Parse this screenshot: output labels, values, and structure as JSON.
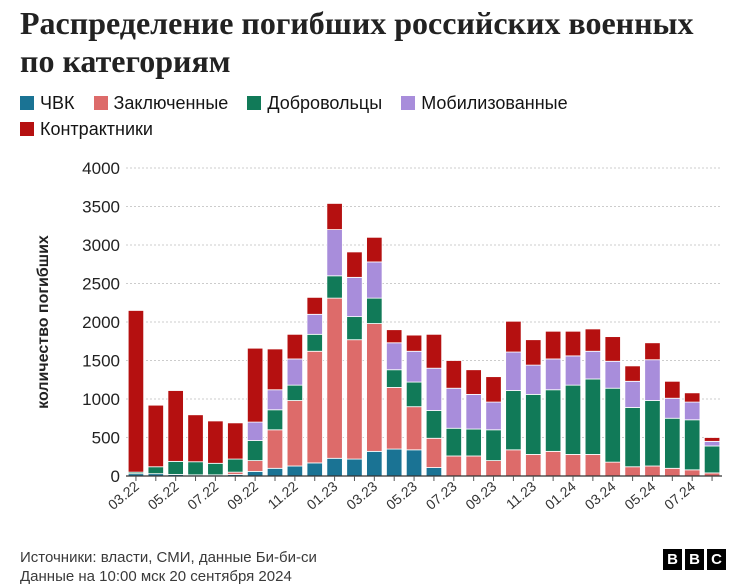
{
  "title": "Распределение погибших российских военных по категориям",
  "legend": [
    {
      "label": "ЧВК",
      "color": "#1a7394"
    },
    {
      "label": "Заключенные",
      "color": "#dd6b6a"
    },
    {
      "label": "Добровольцы",
      "color": "#117a58"
    },
    {
      "label": "Мобилизованные",
      "color": "#a88ddb"
    },
    {
      "label": "Контрактники",
      "color": "#b51010"
    }
  ],
  "footer": {
    "sources": "Источники: власти, СМИ, данные Би-би-си",
    "date": "Данные на 10:00 мск 20 сентября 2024"
  },
  "logo": [
    "B",
    "B",
    "C"
  ],
  "chart_data": {
    "type": "bar",
    "stacked": true,
    "ylabel": "количество погибших",
    "ylim": [
      0,
      4000
    ],
    "yticks": [
      0,
      500,
      1000,
      1500,
      2000,
      2500,
      3000,
      3500,
      4000
    ],
    "categories": [
      "03.22",
      "04.22",
      "05.22",
      "06.22",
      "07.22",
      "08.22",
      "09.22",
      "10.22",
      "11.22",
      "12.22",
      "01.23",
      "02.23",
      "03.23",
      "04.23",
      "05.23",
      "06.23",
      "07.23",
      "08.23",
      "09.23",
      "10.23",
      "11.23",
      "12.23",
      "01.24",
      "02.24",
      "03.24",
      "04.24",
      "05.24",
      "06.24",
      "07.24",
      "08.24"
    ],
    "xtick_labels": [
      "03.22",
      "",
      "05.22",
      "",
      "07.22",
      "",
      "09.22",
      "",
      "11.22",
      "",
      "01.23",
      "",
      "03.23",
      "",
      "05.23",
      "",
      "07.23",
      "",
      "09.23",
      "",
      "11.23",
      "",
      "01.24",
      "",
      "03.24",
      "",
      "05.24",
      "",
      "07.24",
      ""
    ],
    "series": [
      {
        "name": "ЧВК",
        "color": "#1a7394",
        "values": [
          30,
          30,
          20,
          15,
          15,
          20,
          60,
          100,
          130,
          170,
          230,
          220,
          320,
          350,
          340,
          110,
          0,
          0,
          0,
          0,
          0,
          0,
          0,
          0,
          0,
          0,
          0,
          0,
          0,
          0
        ]
      },
      {
        "name": "Заключенные",
        "color": "#dd6b6a",
        "values": [
          0,
          0,
          0,
          0,
          0,
          30,
          140,
          500,
          850,
          1450,
          2080,
          1550,
          1660,
          800,
          560,
          380,
          260,
          260,
          200,
          340,
          280,
          320,
          280,
          280,
          180,
          120,
          130,
          100,
          80,
          40
        ]
      },
      {
        "name": "Добровольцы",
        "color": "#117a58",
        "values": [
          20,
          90,
          170,
          170,
          150,
          170,
          260,
          260,
          200,
          220,
          290,
          300,
          330,
          230,
          320,
          360,
          360,
          350,
          400,
          770,
          780,
          800,
          900,
          980,
          960,
          770,
          850,
          650,
          650,
          350
        ]
      },
      {
        "name": "Мобилизованные",
        "color": "#a88ddb",
        "values": [
          0,
          0,
          0,
          0,
          0,
          0,
          240,
          260,
          340,
          260,
          600,
          510,
          470,
          350,
          400,
          550,
          520,
          450,
          360,
          500,
          380,
          400,
          380,
          360,
          350,
          340,
          530,
          260,
          230,
          60
        ]
      },
      {
        "name": "Контрактники",
        "color": "#b51010",
        "values": [
          2100,
          800,
          920,
          610,
          550,
          470,
          960,
          530,
          320,
          220,
          340,
          330,
          320,
          170,
          210,
          440,
          360,
          320,
          330,
          400,
          330,
          360,
          320,
          290,
          320,
          200,
          220,
          220,
          120,
          50
        ]
      }
    ]
  }
}
